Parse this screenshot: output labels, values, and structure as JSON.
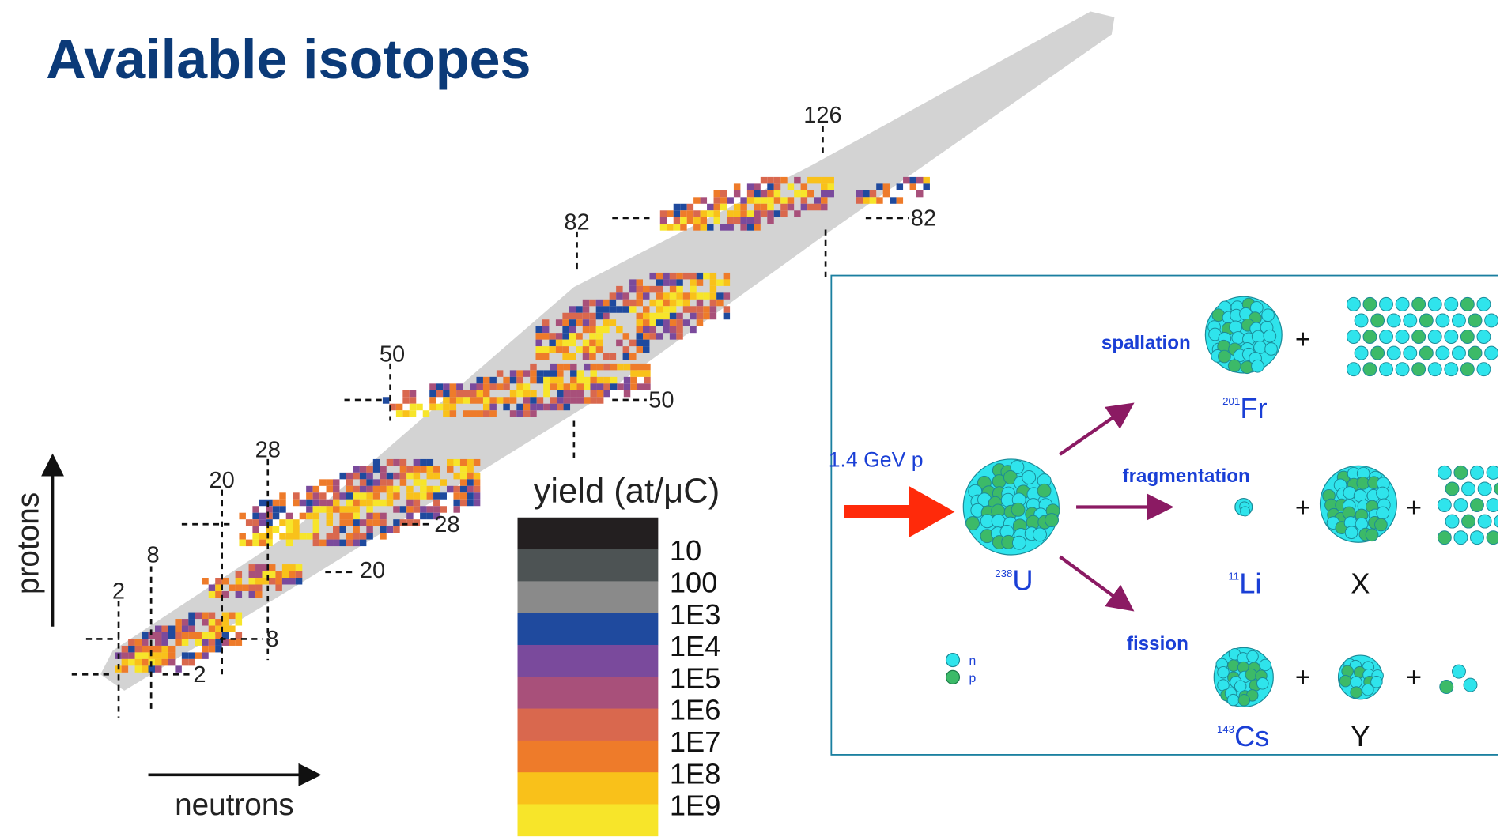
{
  "title": "Available isotopes",
  "nuclide_chart": {
    "neutron_magic": [
      "2",
      "8",
      "20",
      "28",
      "50",
      "82",
      "126"
    ],
    "proton_magic": [
      "2",
      "8",
      "20",
      "28",
      "50",
      "82"
    ],
    "y_axis_label": "protons",
    "x_axis_label": "neutrons"
  },
  "legend": {
    "title": "yield (at/μC)",
    "labels": [
      "10",
      "100",
      "1E3",
      "1E4",
      "1E5",
      "1E6",
      "1E7",
      "1E8",
      "1E9"
    ]
  },
  "reaction_diagram": {
    "beam": "1.4 GeV p",
    "target": {
      "mass": "238",
      "symbol": "U"
    },
    "processes": [
      "spallation",
      "fragmentation",
      "fission"
    ],
    "products": [
      {
        "mass": "201",
        "symbol": "Fr"
      },
      {
        "mass": "11",
        "symbol": "Li"
      },
      {
        "mass": "143",
        "symbol": "Cs"
      }
    ],
    "other_products": [
      "X",
      "Y"
    ],
    "plus": "+",
    "particle_legend": [
      "n",
      "p"
    ]
  }
}
